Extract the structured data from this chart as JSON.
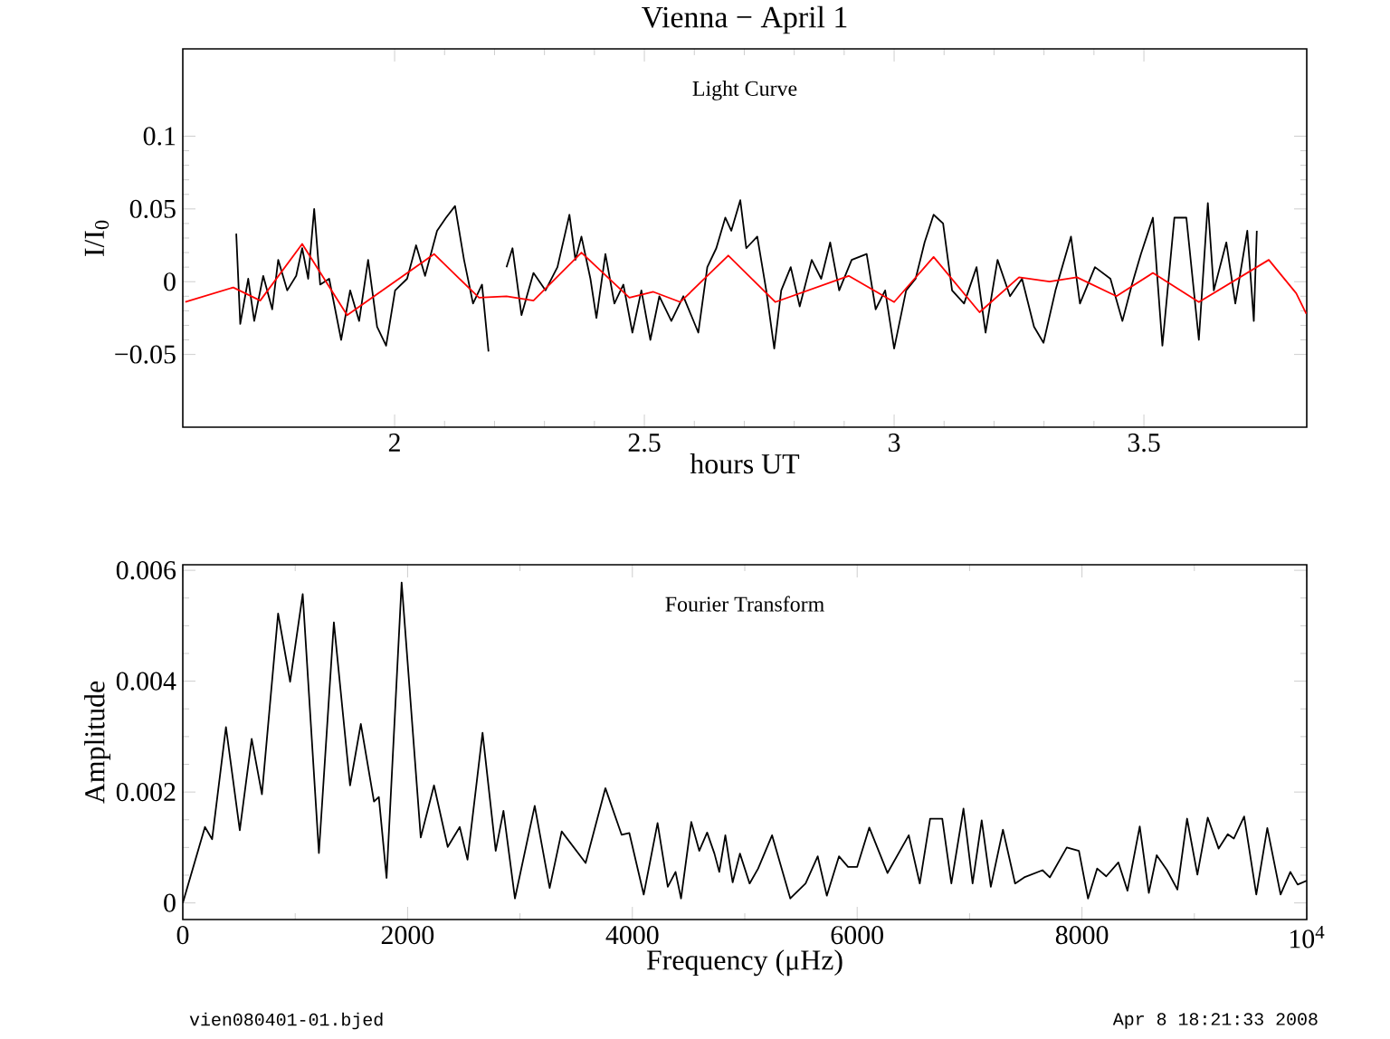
{
  "chart_data": [
    {
      "type": "line",
      "title": "Vienna − April 1",
      "xlabel": "hours UT",
      "ylabel": "I/I$_{0}$",
      "annotations": [
        "Light Curve"
      ],
      "xlim": [
        1.576,
        3.826
      ],
      "ylim": [
        -0.1,
        0.16
      ],
      "xticks": [
        2,
        2.5,
        3,
        3.5
      ],
      "yticks": [
        {
          "value": -0.05,
          "label": "−0.05"
        },
        0,
        0.05,
        0.1
      ],
      "series": [
        {
          "color": "#000000",
          "x": [
            1.683,
            1.691,
            1.707,
            1.719,
            1.737,
            1.755,
            1.767,
            1.785,
            1.803,
            1.815,
            1.827,
            1.839,
            1.851,
            1.869,
            1.893,
            1.911,
            1.929,
            1.947,
            1.965,
            1.983,
            2.001,
            2.025,
            2.043,
            2.061,
            2.085,
            2.103,
            2.121,
            2.139,
            2.157,
            2.175,
            2.188,
            2.2,
            2.224,
            2.236,
            2.254,
            2.278,
            2.302,
            2.326,
            2.35,
            2.362,
            2.374,
            2.392,
            2.404,
            2.422,
            2.44,
            2.458,
            2.476,
            2.494,
            2.512,
            2.53,
            2.554,
            2.578,
            2.608,
            2.626,
            2.644,
            2.662,
            2.674,
            2.692,
            2.704,
            2.726,
            2.744,
            2.76,
            2.774,
            2.793,
            2.811,
            2.835,
            2.854,
            2.872,
            2.89,
            2.915,
            2.945,
            2.963,
            2.982,
            3.0,
            3.024,
            3.043,
            3.061,
            3.079,
            3.098,
            3.116,
            3.14,
            3.165,
            3.183,
            3.207,
            3.232,
            3.256,
            3.28,
            3.299,
            3.323,
            3.354,
            3.372,
            3.402,
            3.433,
            3.457,
            3.476,
            3.494,
            3.518,
            3.537,
            3.561,
            3.585,
            3.61,
            3.628,
            3.64,
            3.665,
            3.683,
            3.707,
            3.72,
            3.726
          ],
          "values": [
            0.033,
            -0.029,
            0.002,
            -0.027,
            0.004,
            -0.019,
            0.015,
            -0.006,
            0.004,
            0.023,
            0.002,
            0.05,
            -0.002,
            0.002,
            -0.04,
            -0.006,
            -0.027,
            0.015,
            -0.031,
            -0.044,
            -0.006,
            0.002,
            0.025,
            0.004,
            0.035,
            0.044,
            0.052,
            0.015,
            -0.015,
            -0.002,
            -0.048,
            null,
            0.01,
            0.023,
            -0.023,
            0.006,
            -0.006,
            0.01,
            0.046,
            0.015,
            0.031,
            0.002,
            -0.025,
            0.019,
            -0.015,
            -0.002,
            -0.035,
            -0.006,
            -0.04,
            -0.01,
            -0.027,
            -0.01,
            -0.035,
            0.01,
            0.023,
            0.044,
            0.035,
            0.056,
            0.023,
            0.031,
            -0.006,
            -0.046,
            -0.006,
            0.01,
            -0.017,
            0.015,
            0.002,
            0.027,
            -0.006,
            0.015,
            0.019,
            -0.019,
            -0.006,
            -0.046,
            -0.006,
            0.002,
            0.027,
            0.046,
            0.04,
            -0.006,
            -0.015,
            0.01,
            -0.035,
            0.015,
            -0.01,
            0.002,
            -0.031,
            -0.042,
            -0.006,
            0.031,
            -0.015,
            0.01,
            0.002,
            -0.027,
            -0.002,
            0.019,
            0.044,
            -0.044,
            0.044,
            0.044,
            -0.04,
            0.054,
            -0.006,
            0.027,
            -0.015,
            0.035,
            -0.027,
            0.035
          ]
        },
        {
          "color": "#ff0000",
          "x": [
            1.581,
            1.677,
            1.731,
            1.815,
            1.905,
            2.079,
            2.169,
            2.224,
            2.278,
            2.374,
            2.47,
            2.518,
            2.572,
            2.668,
            2.762,
            2.909,
            3.0,
            3.079,
            3.171,
            3.25,
            3.311,
            3.366,
            3.445,
            3.518,
            3.61,
            3.75,
            3.805,
            3.825
          ],
          "values": [
            -0.014,
            -0.004,
            -0.013,
            0.026,
            -0.023,
            0.019,
            -0.011,
            -0.01,
            -0.013,
            0.02,
            -0.011,
            -0.007,
            -0.014,
            0.018,
            -0.014,
            0.004,
            -0.014,
            0.017,
            -0.021,
            0.003,
            0.0,
            0.003,
            -0.01,
            0.006,
            -0.014,
            0.015,
            -0.008,
            -0.022
          ]
        }
      ]
    },
    {
      "type": "line",
      "xlabel": "Frequency (μHz)",
      "ylabel": "Amplitude",
      "annotations": [
        "Fourier Transform",
        "vien080401-01.bjed",
        "Apr  8 18:21:33 2008"
      ],
      "xlim": [
        0,
        10000
      ],
      "ylim": [
        -0.0003,
        0.0061
      ],
      "xticks": [
        0,
        2000,
        4000,
        6000,
        8000,
        {
          "value": 10000,
          "label": "10$^{4}$"
        }
      ],
      "yticks": [
        0,
        0.002,
        0.004,
        0.006
      ],
      "series": [
        {
          "color": "#000000",
          "x": [
            0,
            197,
            261,
            384,
            507,
            613,
            704,
            848,
            955,
            1067,
            1211,
            1344,
            1488,
            1584,
            1701,
            1744,
            1813,
            1947,
            2117,
            2235,
            2357,
            2464,
            2533,
            2667,
            2784,
            2853,
            2955,
            3131,
            3264,
            3371,
            3584,
            3760,
            3904,
            3973,
            4101,
            4224,
            4315,
            4384,
            4433,
            4524,
            4595,
            4665,
            4730,
            4773,
            4827,
            4892,
            4957,
            5043,
            5119,
            5243,
            5405,
            5541,
            5649,
            5730,
            5838,
            5919,
            6000,
            6108,
            6270,
            6459,
            6557,
            6649,
            6757,
            6838,
            6946,
            7027,
            7108,
            7189,
            7297,
            7405,
            7486,
            7649,
            7714,
            7865,
            7973,
            8054,
            8135,
            8216,
            8324,
            8405,
            8514,
            8595,
            8665,
            8757,
            8849,
            8935,
            9027,
            9119,
            9216,
            9297,
            9351,
            9443,
            9551,
            9649,
            9767,
            9854,
            9919,
            10000
          ],
          "values": [
            0,
            0.00137,
            0.00115,
            0.00317,
            0.00131,
            0.00296,
            0.00196,
            0.00522,
            0.00399,
            0.00557,
            0.0009,
            0.00506,
            0.00212,
            0.00323,
            0.00183,
            0.00191,
            0.00045,
            0.00578,
            0.00118,
            0.00212,
            0.00101,
            0.00137,
            0.00078,
            0.00307,
            0.00094,
            0.00166,
            8e-05,
            0.00175,
            0.00027,
            0.00129,
            0.00072,
            0.00207,
            0.00123,
            0.00126,
            0.00015,
            0.00144,
            0.00029,
            0.00056,
            8e-05,
            0.00146,
            0.00094,
            0.00127,
            0.00089,
            0.00056,
            0.00122,
            0.00037,
            0.00089,
            0.00035,
            0.00062,
            0.00122,
            8e-05,
            0.00035,
            0.00084,
            0.00013,
            0.00084,
            0.00065,
            0.00065,
            0.00136,
            0.00054,
            0.00122,
            0.00035,
            0.00152,
            0.00152,
            0.00035,
            0.0017,
            0.00035,
            0.00149,
            0.00029,
            0.00132,
            0.00035,
            0.00046,
            0.00059,
            0.00046,
            0.001,
            0.00094,
            8e-05,
            0.00062,
            0.00048,
            0.00073,
            0.00022,
            0.00138,
            0.00018,
            0.00086,
            0.00059,
            0.00024,
            0.00152,
            0.00051,
            0.00154,
            0.00098,
            0.00124,
            0.00116,
            0.00156,
            0.00015,
            0.00135,
            0.00015,
            0.00056,
            0.00033,
            0.0004
          ]
        }
      ]
    }
  ]
}
